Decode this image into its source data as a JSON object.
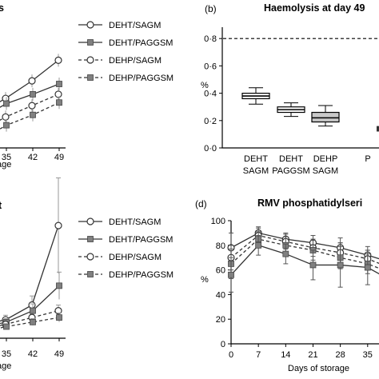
{
  "chart_data": [
    {
      "panel": "a",
      "type": "line",
      "title_fragment": "s",
      "xlabel_fragment": "age",
      "x": [
        35,
        42,
        49
      ],
      "x_ticks": [
        "35",
        "42",
        "49"
      ],
      "series": [
        {
          "name": "DEHT/SAGM",
          "style": "solid",
          "marker": "open-circle",
          "values": [
            108,
            125,
            145
          ]
        },
        {
          "name": "DEHT/PAGGSM",
          "style": "solid",
          "marker": "filled-square",
          "values": [
            103,
            112,
            122
          ]
        },
        {
          "name": "DEHP/SAGM",
          "style": "dashed",
          "marker": "open-circle",
          "values": [
            90,
            101,
            112
          ]
        },
        {
          "name": "DEHP/PAGGSM",
          "style": "dashed",
          "marker": "filled-square",
          "values": [
            82,
            92,
            104
          ]
        }
      ]
    },
    {
      "panel": "b",
      "type": "boxplot",
      "title": "Haemolysis at day 49",
      "ylabel": "%",
      "y_ticks": [
        "0·0",
        "0·2",
        "0·4",
        "0·6",
        "0·8"
      ],
      "ylim": [
        0,
        0.9
      ],
      "threshold": 0.8,
      "categories": [
        [
          "DEHT",
          "SAGM"
        ],
        [
          "DEHT",
          "PAGGSM"
        ],
        [
          "DEHP",
          "SAGM"
        ],
        [
          "P"
        ]
      ],
      "boxes": [
        {
          "min": 0.32,
          "q1": 0.36,
          "median": 0.38,
          "q3": 0.4,
          "max": 0.44,
          "fill": "#ffffff"
        },
        {
          "min": 0.23,
          "q1": 0.26,
          "median": 0.28,
          "q3": 0.3,
          "max": 0.33,
          "fill": "#ffffff"
        },
        {
          "min": 0.16,
          "q1": 0.19,
          "median": 0.22,
          "q3": 0.26,
          "max": 0.31,
          "fill": "#c8c8c8"
        }
      ]
    },
    {
      "panel": "c",
      "type": "line",
      "title_fragment": "t",
      "xlabel_fragment": "age",
      "x": [
        35,
        42,
        49
      ],
      "x_ticks": [
        "35",
        "42",
        "49"
      ],
      "series": [
        {
          "name": "DEHT/SAGM",
          "style": "solid",
          "marker": "open-circle",
          "values": [
            12,
            25,
            95
          ],
          "errors": [
            4,
            8,
            42
          ]
        },
        {
          "name": "DEHT/PAGGSM",
          "style": "solid",
          "marker": "filled-square",
          "values": [
            10,
            20,
            42
          ],
          "errors": [
            3,
            6,
            12
          ]
        },
        {
          "name": "DEHP/SAGM",
          "style": "dashed",
          "marker": "open-circle",
          "values": [
            8,
            14,
            20
          ],
          "errors": [
            2,
            3,
            5
          ]
        },
        {
          "name": "DEHP/PAGGSM",
          "style": "dashed",
          "marker": "filled-square",
          "values": [
            6,
            10,
            14
          ],
          "errors": [
            2,
            3,
            4
          ]
        }
      ]
    },
    {
      "panel": "d",
      "type": "line",
      "title": "RMV phosphatidylseri",
      "ylabel": "%",
      "xlabel": "Days of storage",
      "x_ticks": [
        "0",
        "7",
        "14",
        "21",
        "28",
        "35"
      ],
      "y_ticks": [
        "0",
        "20",
        "40",
        "60",
        "80",
        "100"
      ],
      "xlim": [
        0,
        39
      ],
      "ylim": [
        0,
        100
      ],
      "series": [
        {
          "style": "solid",
          "marker": "open-circle",
          "x": [
            0,
            7,
            14,
            21,
            28,
            35,
            39
          ],
          "values": [
            78,
            90,
            85,
            82,
            78,
            72,
            68
          ],
          "errors": [
            12,
            5,
            5,
            6,
            8,
            7,
            8
          ]
        },
        {
          "style": "dashed",
          "marker": "open-circle",
          "x": [
            0,
            7,
            14,
            21,
            28,
            35,
            39
          ],
          "values": [
            70,
            88,
            83,
            78,
            74,
            69,
            64
          ],
          "errors": [
            10,
            6,
            6,
            7,
            8,
            7,
            8
          ]
        },
        {
          "style": "dashed",
          "marker": "filled-square",
          "x": [
            0,
            7,
            14,
            21,
            28,
            35,
            39
          ],
          "values": [
            65,
            85,
            80,
            76,
            70,
            65,
            60
          ],
          "errors": [
            12,
            6,
            7,
            8,
            9,
            8,
            9
          ]
        },
        {
          "style": "solid",
          "marker": "filled-square",
          "x": [
            0,
            7,
            14,
            21,
            28,
            35,
            39
          ],
          "values": [
            56,
            80,
            73,
            64,
            64,
            62,
            55
          ],
          "errors": [
            14,
            8,
            8,
            12,
            18,
            14,
            12
          ]
        }
      ]
    }
  ],
  "panels": {
    "b_label": "(b)",
    "d_label": "(d)"
  },
  "legend": {
    "top": [
      "DEHT/SAGM",
      "DEHT/PAGGSM",
      "DEHP/SAGM",
      "DEHP/PAGGSM"
    ],
    "bottom": [
      "DEHT/SAGM",
      "DEHT/PAGGSM",
      "DEHP/SAGM",
      "DEHP/PAGGSM"
    ]
  },
  "colors": {
    "deht": "#333333",
    "dehp": "#555555",
    "square_fill": "#808080"
  }
}
